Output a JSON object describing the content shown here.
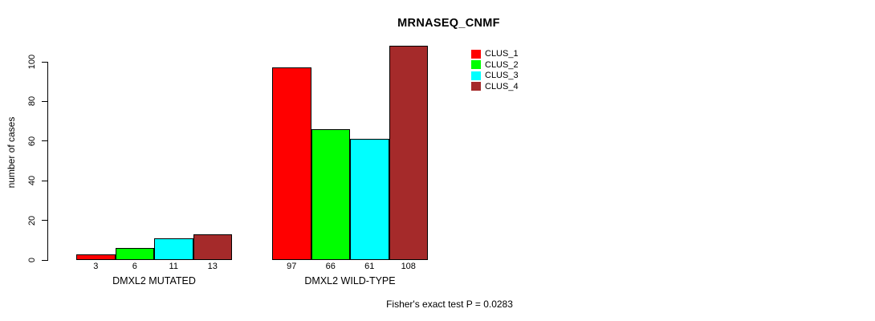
{
  "title": "MRNASEQ_CNMF",
  "y_axis": {
    "label": "number of cases",
    "ticks": [
      0,
      20,
      40,
      60,
      80,
      100
    ]
  },
  "footer": {
    "note": "Fisher's exact test P = 0.0283"
  },
  "legend": {
    "items": [
      {
        "label": "CLUS_1",
        "color": "#ff0000"
      },
      {
        "label": "CLUS_2",
        "color": "#00ff00"
      },
      {
        "label": "CLUS_3",
        "color": "#00ffff"
      },
      {
        "label": "CLUS_4",
        "color": "#a52a2a"
      }
    ]
  },
  "chart_data": {
    "type": "bar",
    "title": "MRNASEQ_CNMF",
    "ylabel": "number of cases",
    "xlabel": "",
    "ylim": [
      0,
      110
    ],
    "yticks": [
      0,
      20,
      40,
      60,
      80,
      100
    ],
    "grid": false,
    "legend_position": "top-right",
    "categories": [
      "DMXL2 MUTATED",
      "DMXL2 WILD-TYPE"
    ],
    "series": [
      {
        "name": "CLUS_1",
        "color": "#ff0000",
        "values": [
          3,
          97
        ]
      },
      {
        "name": "CLUS_2",
        "color": "#00ff00",
        "values": [
          6,
          66
        ]
      },
      {
        "name": "CLUS_3",
        "color": "#00ffff",
        "values": [
          11,
          61
        ]
      },
      {
        "name": "CLUS_4",
        "color": "#a52a2a",
        "values": [
          13,
          108
        ]
      }
    ],
    "bar_value_labels": [
      [
        3,
        6,
        11,
        13
      ],
      [
        97,
        66,
        61,
        108
      ]
    ],
    "annotation": "Fisher's exact test P = 0.0283"
  }
}
